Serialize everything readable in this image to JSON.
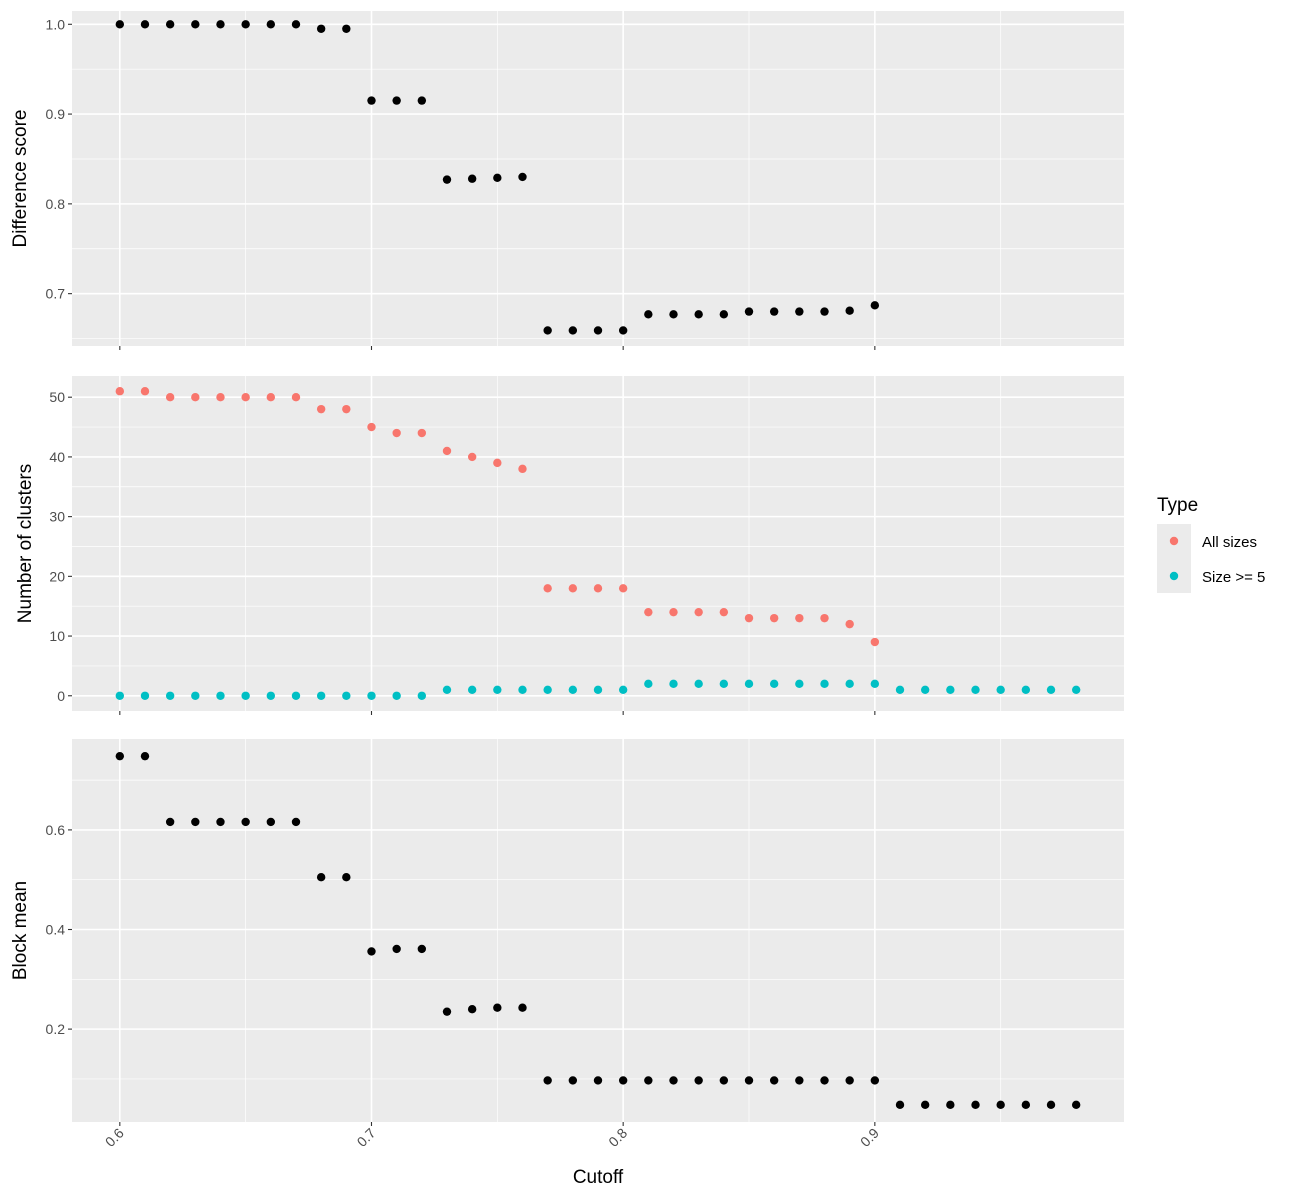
{
  "chart_data": {
    "type": "scatter",
    "x_axis": {
      "label": "Cutoff",
      "ticks": [
        0.6,
        0.7,
        0.8,
        0.9
      ],
      "tick_labels": [
        "0.6",
        "0.7",
        "0.8",
        "0.9"
      ],
      "range": [
        0.581,
        0.999
      ]
    },
    "legend": {
      "title": "Type",
      "position": "right",
      "entries": [
        {
          "name": "All sizes",
          "color": "#F8766D"
        },
        {
          "name": "Size >= 5",
          "color": "#00BFC4"
        }
      ]
    },
    "panels": [
      {
        "ylabel": "Difference score",
        "ylim": [
          0.6417,
          1.0148
        ],
        "yticks": [
          0.7,
          0.8,
          0.9,
          1.0
        ],
        "ytick_labels": [
          "0.7",
          "0.8",
          "0.9",
          "1.0"
        ],
        "series": [
          {
            "color": "#000000",
            "x": [
              0.6,
              0.61,
              0.62,
              0.63,
              0.64,
              0.65,
              0.66,
              0.67,
              0.68,
              0.69,
              0.7,
              0.71,
              0.72,
              0.73,
              0.74,
              0.75,
              0.76,
              0.77,
              0.78,
              0.79,
              0.8,
              0.81,
              0.82,
              0.83,
              0.84,
              0.85,
              0.86,
              0.87,
              0.88,
              0.89,
              0.9
            ],
            "y": [
              1.0,
              1.0,
              1.0,
              1.0,
              1.0,
              1.0,
              1.0,
              1.0,
              0.995,
              0.995,
              0.915,
              0.915,
              0.915,
              0.827,
              0.828,
              0.829,
              0.83,
              0.659,
              0.659,
              0.659,
              0.659,
              0.677,
              0.677,
              0.677,
              0.677,
              0.68,
              0.68,
              0.68,
              0.68,
              0.681,
              0.687
            ]
          }
        ]
      },
      {
        "ylabel": "Number of clusters",
        "ylim": [
          -2.55,
          53.55
        ],
        "yticks": [
          0,
          10,
          20,
          30,
          40,
          50
        ],
        "ytick_labels": [
          "0",
          "10",
          "20",
          "30",
          "40",
          "50"
        ],
        "series": [
          {
            "name": "All sizes",
            "color": "#F8766D",
            "x": [
              0.6,
              0.61,
              0.62,
              0.63,
              0.64,
              0.65,
              0.66,
              0.67,
              0.68,
              0.69,
              0.7,
              0.71,
              0.72,
              0.73,
              0.74,
              0.75,
              0.76,
              0.77,
              0.78,
              0.79,
              0.8,
              0.81,
              0.82,
              0.83,
              0.84,
              0.85,
              0.86,
              0.87,
              0.88,
              0.89,
              0.9
            ],
            "y": [
              51,
              51,
              50,
              50,
              50,
              50,
              50,
              50,
              48,
              48,
              45,
              44,
              44,
              41,
              40,
              39,
              38,
              18,
              18,
              18,
              18,
              14,
              14,
              14,
              14,
              13,
              13,
              13,
              13,
              12,
              9
            ]
          },
          {
            "name": "Size >= 5",
            "color": "#00BFC4",
            "x": [
              0.6,
              0.61,
              0.62,
              0.63,
              0.64,
              0.65,
              0.66,
              0.67,
              0.68,
              0.69,
              0.7,
              0.71,
              0.72,
              0.73,
              0.74,
              0.75,
              0.76,
              0.77,
              0.78,
              0.79,
              0.8,
              0.81,
              0.82,
              0.83,
              0.84,
              0.85,
              0.86,
              0.87,
              0.88,
              0.89,
              0.9,
              0.91,
              0.92,
              0.93,
              0.94,
              0.95,
              0.96,
              0.97,
              0.98
            ],
            "y": [
              0,
              0,
              0,
              0,
              0,
              0,
              0,
              0,
              0,
              0,
              0,
              0,
              0,
              1,
              1,
              1,
              1,
              1,
              1,
              1,
              1,
              2,
              2,
              2,
              2,
              2,
              2,
              2,
              2,
              2,
              2,
              1,
              1,
              1,
              1,
              1,
              1,
              1,
              1
            ]
          }
        ]
      },
      {
        "ylabel": "Block mean",
        "ylim": [
          0.0135,
          0.7825
        ],
        "yticks": [
          0.2,
          0.4,
          0.6
        ],
        "ytick_labels": [
          "0.2",
          "0.4",
          "0.6"
        ],
        "series": [
          {
            "color": "#000000",
            "x": [
              0.6,
              0.61,
              0.62,
              0.63,
              0.64,
              0.65,
              0.66,
              0.67,
              0.68,
              0.69,
              0.7,
              0.71,
              0.72,
              0.73,
              0.74,
              0.75,
              0.76,
              0.77,
              0.78,
              0.79,
              0.8,
              0.81,
              0.82,
              0.83,
              0.84,
              0.85,
              0.86,
              0.87,
              0.88,
              0.89,
              0.9,
              0.91,
              0.92,
              0.93,
              0.94,
              0.95,
              0.96,
              0.97,
              0.98
            ],
            "y": [
              0.748,
              0.748,
              0.616,
              0.616,
              0.616,
              0.616,
              0.616,
              0.616,
              0.505,
              0.505,
              0.356,
              0.361,
              0.361,
              0.235,
              0.24,
              0.243,
              0.243,
              0.097,
              0.097,
              0.097,
              0.097,
              0.097,
              0.097,
              0.097,
              0.097,
              0.097,
              0.097,
              0.097,
              0.097,
              0.097,
              0.097,
              0.048,
              0.048,
              0.048,
              0.048,
              0.048,
              0.048,
              0.048,
              0.048
            ]
          }
        ]
      }
    ]
  }
}
